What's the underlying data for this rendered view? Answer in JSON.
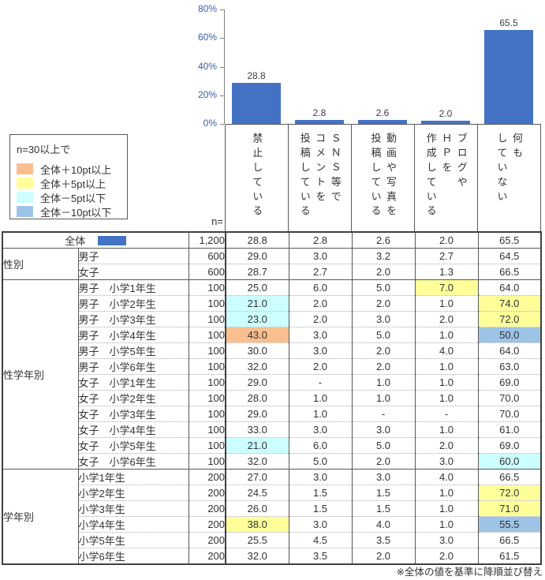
{
  "colors": {
    "bar": "#4472C4",
    "axis_label": "#3B5EAB",
    "plus10": "#FABF8F",
    "plus5": "#FFFF9A",
    "minus5": "#CCFFFF",
    "minus10": "#9DC3E6"
  },
  "chart_data": {
    "type": "bar",
    "categories": [
      "禁止している",
      "ＳＮＳ等でコメントを投稿している",
      "動画や写真を投稿している",
      "ブログやＨＰを作成している",
      "何もしていない"
    ],
    "values": [
      28.8,
      2.8,
      2.6,
      2.0,
      65.5
    ],
    "title": "",
    "xlabel": "",
    "ylabel": "",
    "ylim": [
      0,
      80
    ],
    "yticks": [
      "80%",
      "60%",
      "40%",
      "20%",
      "0%"
    ],
    "grid": false,
    "legend_position": "none",
    "bar_color": "#4472C4"
  },
  "legend": {
    "title": "n=30以上で",
    "items": [
      {
        "label": "全体＋10pt以上",
        "color_key": "plus10"
      },
      {
        "label": "全体＋5pt以上",
        "color_key": "plus5"
      },
      {
        "label": "全体－5pt以下",
        "color_key": "minus5"
      },
      {
        "label": "全体－10pt以下",
        "color_key": "minus10"
      }
    ]
  },
  "table": {
    "n_header": "n=",
    "col_headers": [
      "禁止している",
      "ＳＮＳ等で\nコメントを\n投稿している",
      "動画や写真を\n投稿している",
      "ブログや\nＨＰを\n作成している",
      "何も\nしていない"
    ],
    "groups": [
      {
        "name": "",
        "rows": [
          {
            "label": "全体",
            "merge": true,
            "n": "1,200",
            "values": [
              "28.8",
              "2.8",
              "2.6",
              "2.0",
              "65.5"
            ]
          }
        ]
      },
      {
        "name": "性別",
        "rows": [
          {
            "label": "男子",
            "n": "600",
            "values": [
              "29.0",
              "3.0",
              "3.2",
              "2.7",
              "64.5"
            ]
          },
          {
            "label": "女子",
            "n": "600",
            "values": [
              "28.7",
              "2.7",
              "2.0",
              "1.3",
              "66.5"
            ]
          }
        ]
      },
      {
        "name": "性学年別",
        "rows": [
          {
            "label": "男子　小学1年生",
            "n": "100",
            "values": [
              "25.0",
              "6.0",
              "5.0",
              "7.0",
              "64.0"
            ],
            "hl": {
              "3": "plus5"
            }
          },
          {
            "label": "男子　小学2年生",
            "n": "100",
            "values": [
              "21.0",
              "2.0",
              "2.0",
              "1.0",
              "74.0"
            ],
            "hl": {
              "0": "minus5",
              "4": "plus5"
            }
          },
          {
            "label": "男子　小学3年生",
            "n": "100",
            "values": [
              "23.0",
              "2.0",
              "3.0",
              "2.0",
              "72.0"
            ],
            "hl": {
              "0": "minus5",
              "4": "plus5"
            }
          },
          {
            "label": "男子　小学4年生",
            "n": "100",
            "values": [
              "43.0",
              "3.0",
              "5.0",
              "1.0",
              "50.0"
            ],
            "hl": {
              "0": "plus10",
              "4": "minus10"
            }
          },
          {
            "label": "男子　小学5年生",
            "n": "100",
            "values": [
              "30.0",
              "3.0",
              "2.0",
              "4.0",
              "64.0"
            ]
          },
          {
            "label": "男子　小学6年生",
            "n": "100",
            "values": [
              "32.0",
              "2.0",
              "2.0",
              "1.0",
              "63.0"
            ]
          },
          {
            "label": "女子　小学1年生",
            "n": "100",
            "values": [
              "29.0",
              "-",
              "1.0",
              "1.0",
              "69.0"
            ]
          },
          {
            "label": "女子　小学2年生",
            "n": "100",
            "values": [
              "28.0",
              "1.0",
              "1.0",
              "1.0",
              "70.0"
            ]
          },
          {
            "label": "女子　小学3年生",
            "n": "100",
            "values": [
              "29.0",
              "1.0",
              "-",
              "-",
              "70.0"
            ]
          },
          {
            "label": "女子　小学4年生",
            "n": "100",
            "values": [
              "33.0",
              "3.0",
              "3.0",
              "1.0",
              "61.0"
            ]
          },
          {
            "label": "女子　小学5年生",
            "n": "100",
            "values": [
              "21.0",
              "6.0",
              "5.0",
              "2.0",
              "69.0"
            ],
            "hl": {
              "0": "minus5"
            }
          },
          {
            "label": "女子　小学6年生",
            "n": "100",
            "values": [
              "32.0",
              "5.0",
              "2.0",
              "3.0",
              "60.0"
            ],
            "hl": {
              "4": "minus5"
            }
          }
        ]
      },
      {
        "name": "学年別",
        "rows": [
          {
            "label": "小学1年生",
            "n": "200",
            "values": [
              "27.0",
              "3.0",
              "3.0",
              "4.0",
              "66.5"
            ]
          },
          {
            "label": "小学2年生",
            "n": "200",
            "values": [
              "24.5",
              "1.5",
              "1.5",
              "1.0",
              "72.0"
            ],
            "hl": {
              "4": "plus5"
            }
          },
          {
            "label": "小学3年生",
            "n": "200",
            "values": [
              "26.0",
              "1.5",
              "1.5",
              "1.0",
              "71.0"
            ],
            "hl": {
              "4": "plus5"
            }
          },
          {
            "label": "小学4年生",
            "n": "200",
            "values": [
              "38.0",
              "3.0",
              "4.0",
              "1.0",
              "55.5"
            ],
            "hl": {
              "0": "plus5",
              "4": "minus10"
            }
          },
          {
            "label": "小学5年生",
            "n": "200",
            "values": [
              "25.5",
              "4.5",
              "3.5",
              "3.0",
              "66.5"
            ]
          },
          {
            "label": "小学6年生",
            "n": "200",
            "values": [
              "32.0",
              "3.5",
              "2.0",
              "2.0",
              "61.5"
            ]
          }
        ]
      }
    ]
  },
  "footnote": "※全体の値を基準に降順並び替え"
}
